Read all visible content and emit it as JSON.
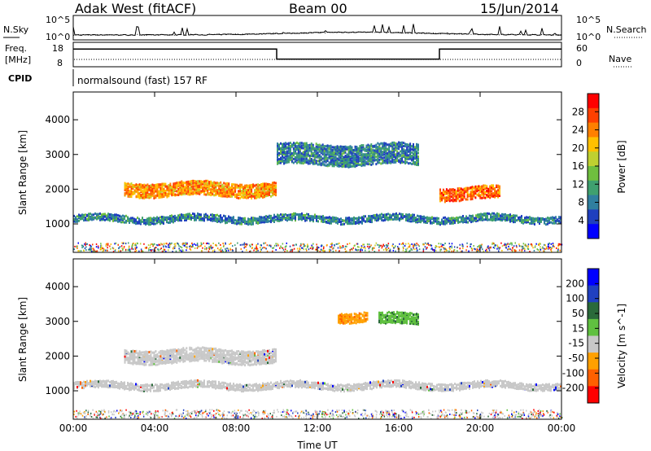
{
  "header": {
    "station": "Adak West (fitACF)",
    "beam": "Beam 00",
    "date": "15/Jun/2014"
  },
  "noise_panel": {
    "left_label": "N.Sky",
    "right_label": "N.Search",
    "left_ticks": [
      "10^5",
      "10^0"
    ],
    "right_ticks": [
      "10^5",
      "10^0"
    ]
  },
  "freq_panel": {
    "left_label_1": "Freq.",
    "left_label_2": "[MHz]",
    "left_ticks": [
      "18",
      "8"
    ],
    "right_label": "Nave",
    "right_ticks": [
      "60",
      "0"
    ],
    "freq_steps": [
      {
        "start_h": 0,
        "end_h": 10,
        "level": 0.74
      },
      {
        "start_h": 10,
        "end_h": 18,
        "level": 0.3
      },
      {
        "start_h": 18,
        "end_h": 24,
        "level": 0.74
      }
    ]
  },
  "cpid": {
    "label": "CPID",
    "text": "normalsound (fast) 157 RF"
  },
  "colors": {
    "power_scale": [
      "#0000ff",
      "#1f3fbf",
      "#2f7f9f",
      "#3fa06f",
      "#6fbf3f",
      "#bfd030",
      "#ffc000",
      "#ff8000",
      "#ff4000",
      "#ff0000"
    ],
    "velocity_scale": [
      "#ff0000",
      "#ff6000",
      "#ffa000",
      "#c8c8c8",
      "#60c040",
      "#2a6a3a",
      "#2040c0",
      "#0000ff"
    ],
    "ground_scatter_gray": "#c8c8c8"
  },
  "chart_data": [
    {
      "type": "heatmap",
      "title": "",
      "xlabel": "",
      "ylabel": "Slant Range [km]",
      "x_ticks": [
        "00:00",
        "04:00",
        "08:00",
        "12:00",
        "16:00",
        "20:00",
        "00:00"
      ],
      "xlim_hours": [
        0,
        24
      ],
      "ylim_km": [
        180,
        4800
      ],
      "y_ticks": [
        1000,
        2000,
        3000,
        4000
      ],
      "colorbar_label": "Power [dB]",
      "colorbar_ticks": [
        "28",
        "24",
        "20",
        "16",
        "12",
        "8",
        "4"
      ],
      "colorbar_range": [
        0,
        30
      ],
      "features": [
        {
          "name": "band_low",
          "x_range_h": [
            0,
            24
          ],
          "range_km": [
            1050,
            1250
          ],
          "typical_value": 8
        },
        {
          "name": "band_mid",
          "x_range_h": [
            2.5,
            10
          ],
          "range_km": [
            1800,
            2200
          ],
          "typical_value": 22
        },
        {
          "name": "band_mid_late",
          "x_range_h": [
            18,
            21
          ],
          "range_km": [
            1700,
            2050
          ],
          "typical_value": 24
        },
        {
          "name": "band_high",
          "x_range_h": [
            10,
            17
          ],
          "range_km": [
            2700,
            3300
          ],
          "typical_value": 8
        }
      ]
    },
    {
      "type": "heatmap",
      "title": "",
      "xlabel": "Time UT",
      "ylabel": "Slant Range [km]",
      "x_ticks": [
        "00:00",
        "04:00",
        "08:00",
        "12:00",
        "16:00",
        "20:00",
        "00:00"
      ],
      "xlim_hours": [
        0,
        24
      ],
      "ylim_km": [
        180,
        4800
      ],
      "y_ticks": [
        1000,
        2000,
        3000,
        4000
      ],
      "colorbar_label": "Velocity [m s^-1]",
      "colorbar_ticks": [
        "200",
        "100",
        "50",
        "15",
        "-15",
        "-50",
        "-100",
        "-200"
      ],
      "colorbar_range": [
        -250,
        250
      ],
      "features": [
        {
          "name": "band_low",
          "x_range_h": [
            0,
            24
          ],
          "range_km": [
            1050,
            1250
          ],
          "typical_value": 0
        },
        {
          "name": "band_mid",
          "x_range_h": [
            2.5,
            10
          ],
          "range_km": [
            1800,
            2200
          ],
          "typical_value": 0
        },
        {
          "name": "band_high_pos",
          "x_range_h": [
            15,
            17
          ],
          "range_km": [
            2900,
            3200
          ],
          "typical_value": 60
        },
        {
          "name": "band_high_neg",
          "x_range_h": [
            13,
            14.5
          ],
          "range_km": [
            3000,
            3250
          ],
          "typical_value": -70
        }
      ]
    }
  ]
}
